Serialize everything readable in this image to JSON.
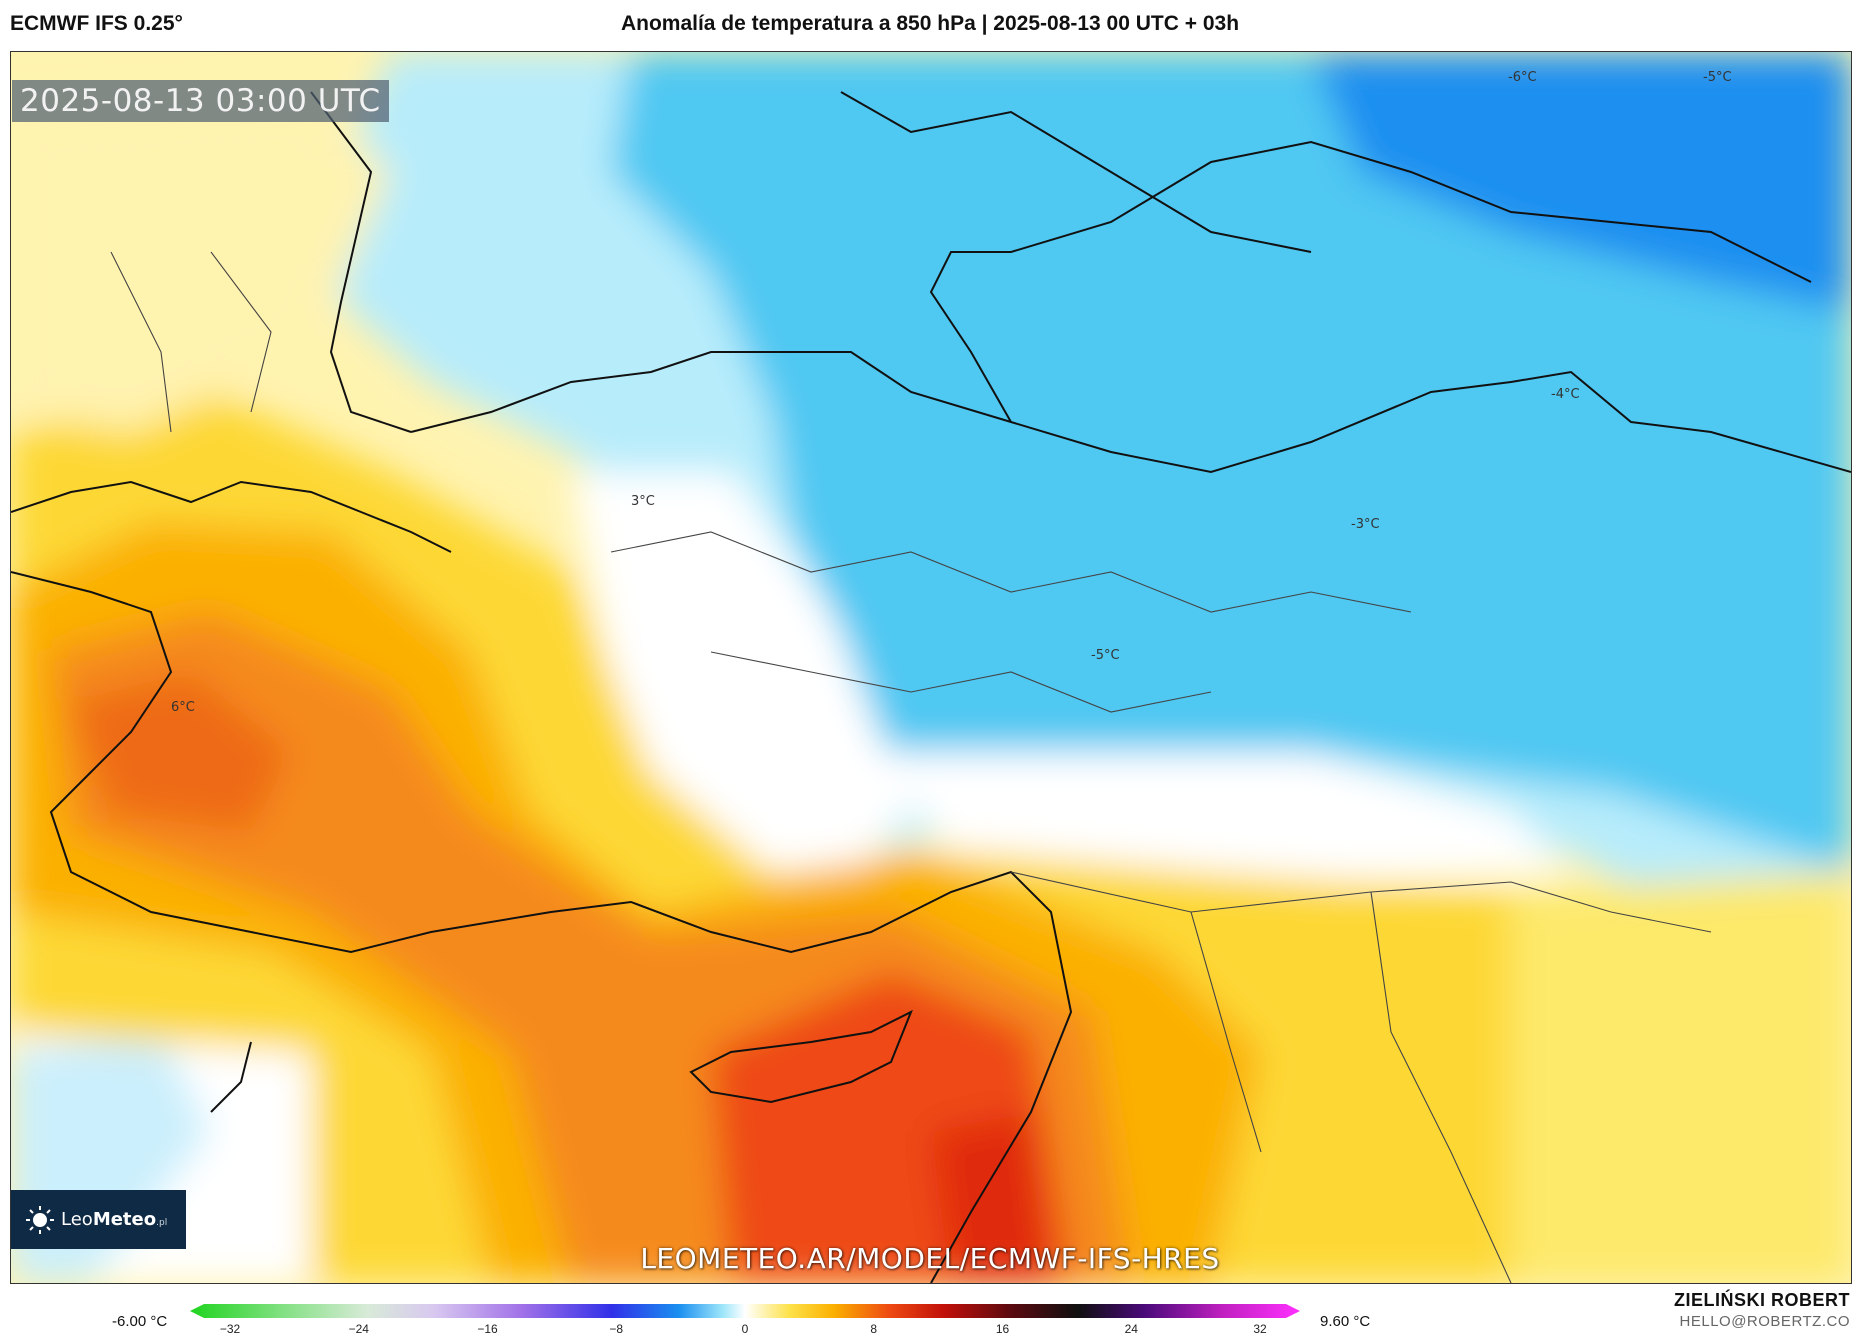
{
  "header": {
    "model": "ECMWF IFS 0.25°",
    "title": "Anomalía de temperatura a 850 hPa | 2025-08-13 00 UTC + 03h"
  },
  "map": {
    "timestamp": "2025-08-13 03:00 UTC",
    "watermark": "LEOMETEO.AR/MODEL/ECMWF-IFS-HRES",
    "contour_labels": [
      "-6°C",
      "-5°C",
      "-4°C",
      "3°C",
      "-3°C",
      "-5°C",
      "6°C"
    ],
    "colors": {
      "cold_strong": "#1a8ff0",
      "cold": "#4fc8f2",
      "cool": "#b7ecfb",
      "neutral": "#ffffff",
      "warm_light": "#fff3b0",
      "warm": "#fdd835",
      "warmer": "#fbb000",
      "hot": "#f58a1f",
      "very_hot": "#ee4a12",
      "land_border": "#111111"
    }
  },
  "logo": {
    "brand_regular": "Leo",
    "brand_bold": "Meteo",
    "suffix": ".pl"
  },
  "colorbar": {
    "min_label": "-6.00 °C",
    "max_label": "9.60 °C",
    "ticks": [
      "−32",
      "−24",
      "−16",
      "−8",
      "0",
      "8",
      "16",
      "24",
      "32"
    ],
    "range": [
      -36,
      36
    ]
  },
  "credits": {
    "author": "ZIELIŃSKI ROBERT",
    "email": "HELLO@ROBERTZ.CO"
  }
}
